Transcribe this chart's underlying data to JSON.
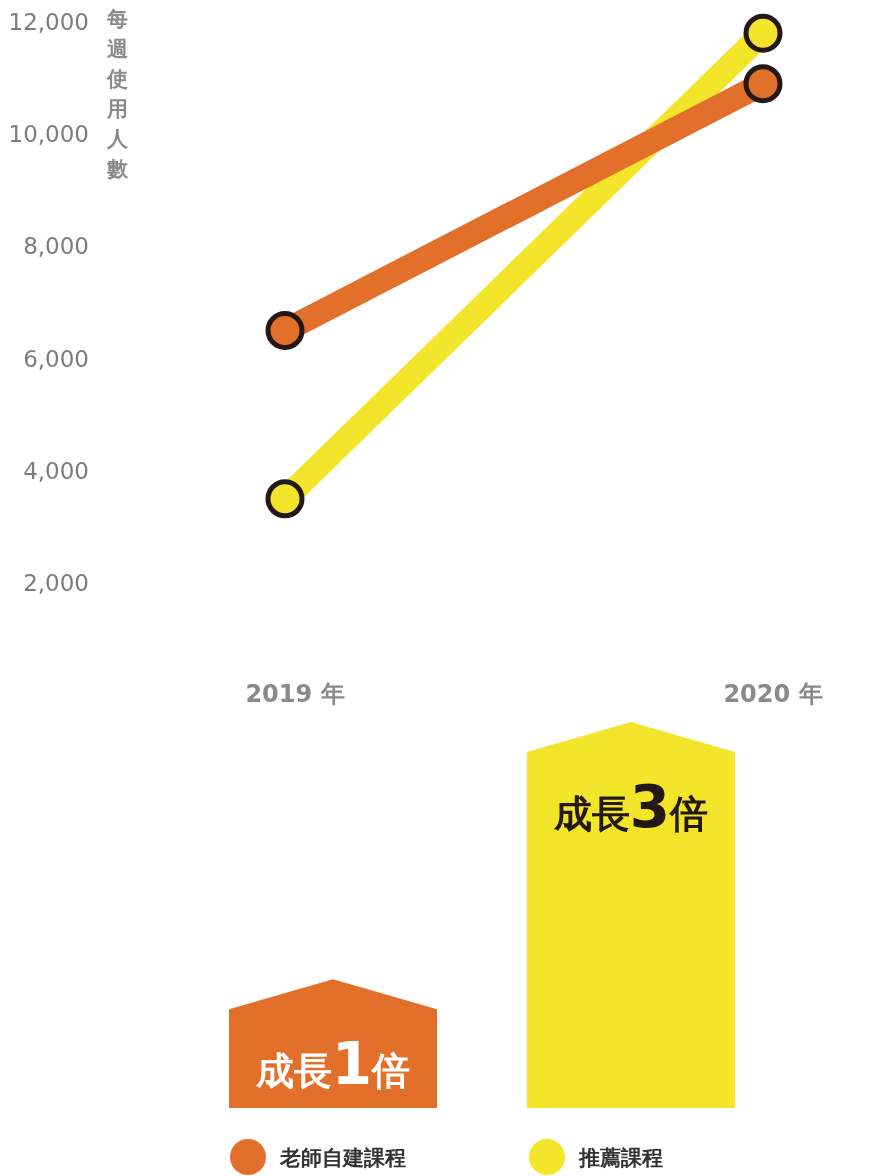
{
  "chart_data": [
    {
      "type": "line",
      "ylabel": "每週使用人數",
      "categories": [
        "2019 年",
        "2020 年"
      ],
      "ylim": [
        2000,
        12000
      ],
      "yticks": [
        {
          "value": 2000,
          "label": "2,000"
        },
        {
          "value": 4000,
          "label": "4,000"
        },
        {
          "value": 6000,
          "label": "6,000"
        },
        {
          "value": 8000,
          "label": "8,000"
        },
        {
          "value": 10000,
          "label": "10,000"
        },
        {
          "value": 12000,
          "label": "12,000"
        }
      ],
      "marker": "circle",
      "legend": "bottom",
      "grid": false,
      "series": [
        {
          "name": "老師自建課程",
          "color": "#e2702b",
          "values": [
            6500,
            10900
          ]
        },
        {
          "name": "推薦課程",
          "color": "#f2e52a",
          "values": [
            3500,
            11800
          ]
        }
      ]
    },
    {
      "type": "bar",
      "categories": [
        null,
        null
      ],
      "values": [
        1,
        3
      ],
      "colors": [
        "#e2702b",
        "#f2e52a"
      ],
      "value_labels": [
        "成長1倍",
        "成長3倍"
      ]
    }
  ]
}
